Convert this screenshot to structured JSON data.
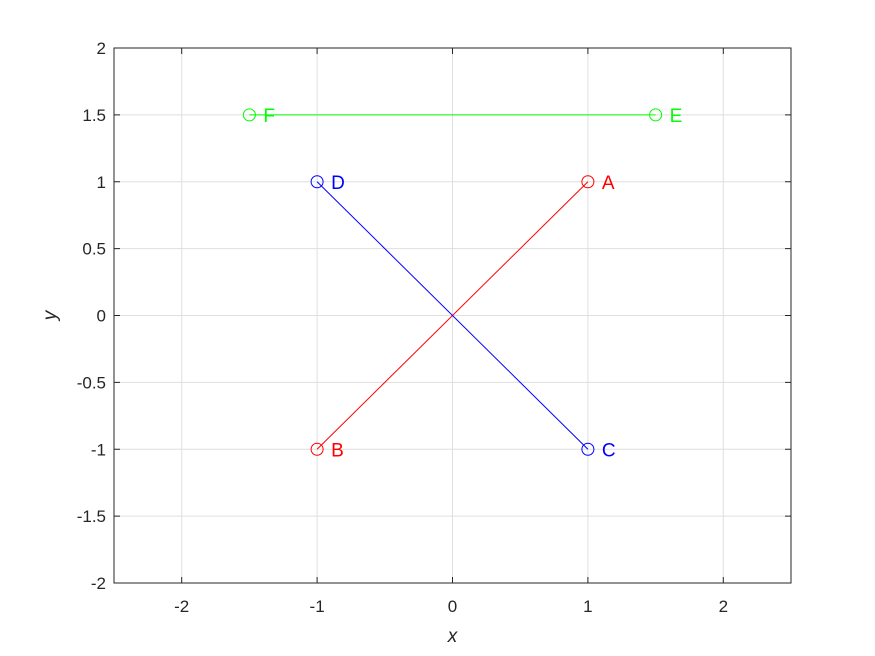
{
  "chart_data": {
    "type": "line",
    "title": "",
    "xlabel": "x",
    "ylabel": "y",
    "xlim": [
      -2.5,
      2.5
    ],
    "ylim": [
      -2,
      2
    ],
    "xticks": [
      -2,
      -1,
      0,
      1,
      2
    ],
    "xtick_labels": [
      "-2",
      "-1",
      "0",
      "1",
      "2"
    ],
    "yticks": [
      -2,
      -1.5,
      -1,
      -0.5,
      0,
      0.5,
      1,
      1.5,
      2
    ],
    "ytick_labels": [
      "-2",
      "-1.5",
      "-1",
      "-0.5",
      "0",
      "0.5",
      "1",
      "1.5",
      "2"
    ],
    "grid": true,
    "legend": "none",
    "segments": [
      {
        "color": "#ff0000",
        "points": [
          {
            "label": "A",
            "x": 1,
            "y": 1
          },
          {
            "label": "B",
            "x": -1,
            "y": -1
          }
        ]
      },
      {
        "color": "#0000ff",
        "points": [
          {
            "label": "C",
            "x": 1,
            "y": -1
          },
          {
            "label": "D",
            "x": -1,
            "y": 1
          }
        ]
      },
      {
        "color": "#00ff00",
        "points": [
          {
            "label": "E",
            "x": 1.5,
            "y": 1.5
          },
          {
            "label": "F",
            "x": -1.5,
            "y": 1.5
          }
        ]
      }
    ]
  }
}
